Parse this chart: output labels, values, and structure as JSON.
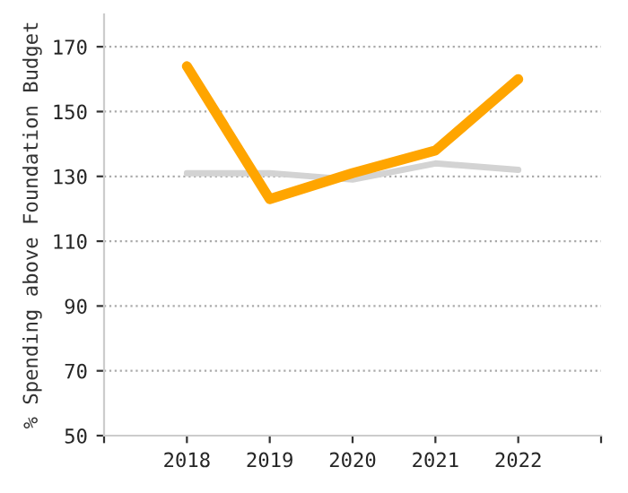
{
  "chart_data": {
    "type": "line",
    "ylabel": "% Spending above Foundation Budget",
    "categories": [
      "2018",
      "2019",
      "2020",
      "2021",
      "2022"
    ],
    "series": [
      {
        "color": "#d3d3d3",
        "values": [
          131,
          131,
          129,
          134,
          132
        ]
      },
      {
        "color": "#ffa500",
        "values": [
          164,
          123,
          131,
          138,
          160
        ]
      }
    ],
    "ylim": [
      50,
      180
    ],
    "yticks": [
      50,
      70,
      90,
      110,
      130,
      150,
      170
    ],
    "grid": "y",
    "legend": false,
    "marker": "none",
    "line_style": "solid"
  }
}
